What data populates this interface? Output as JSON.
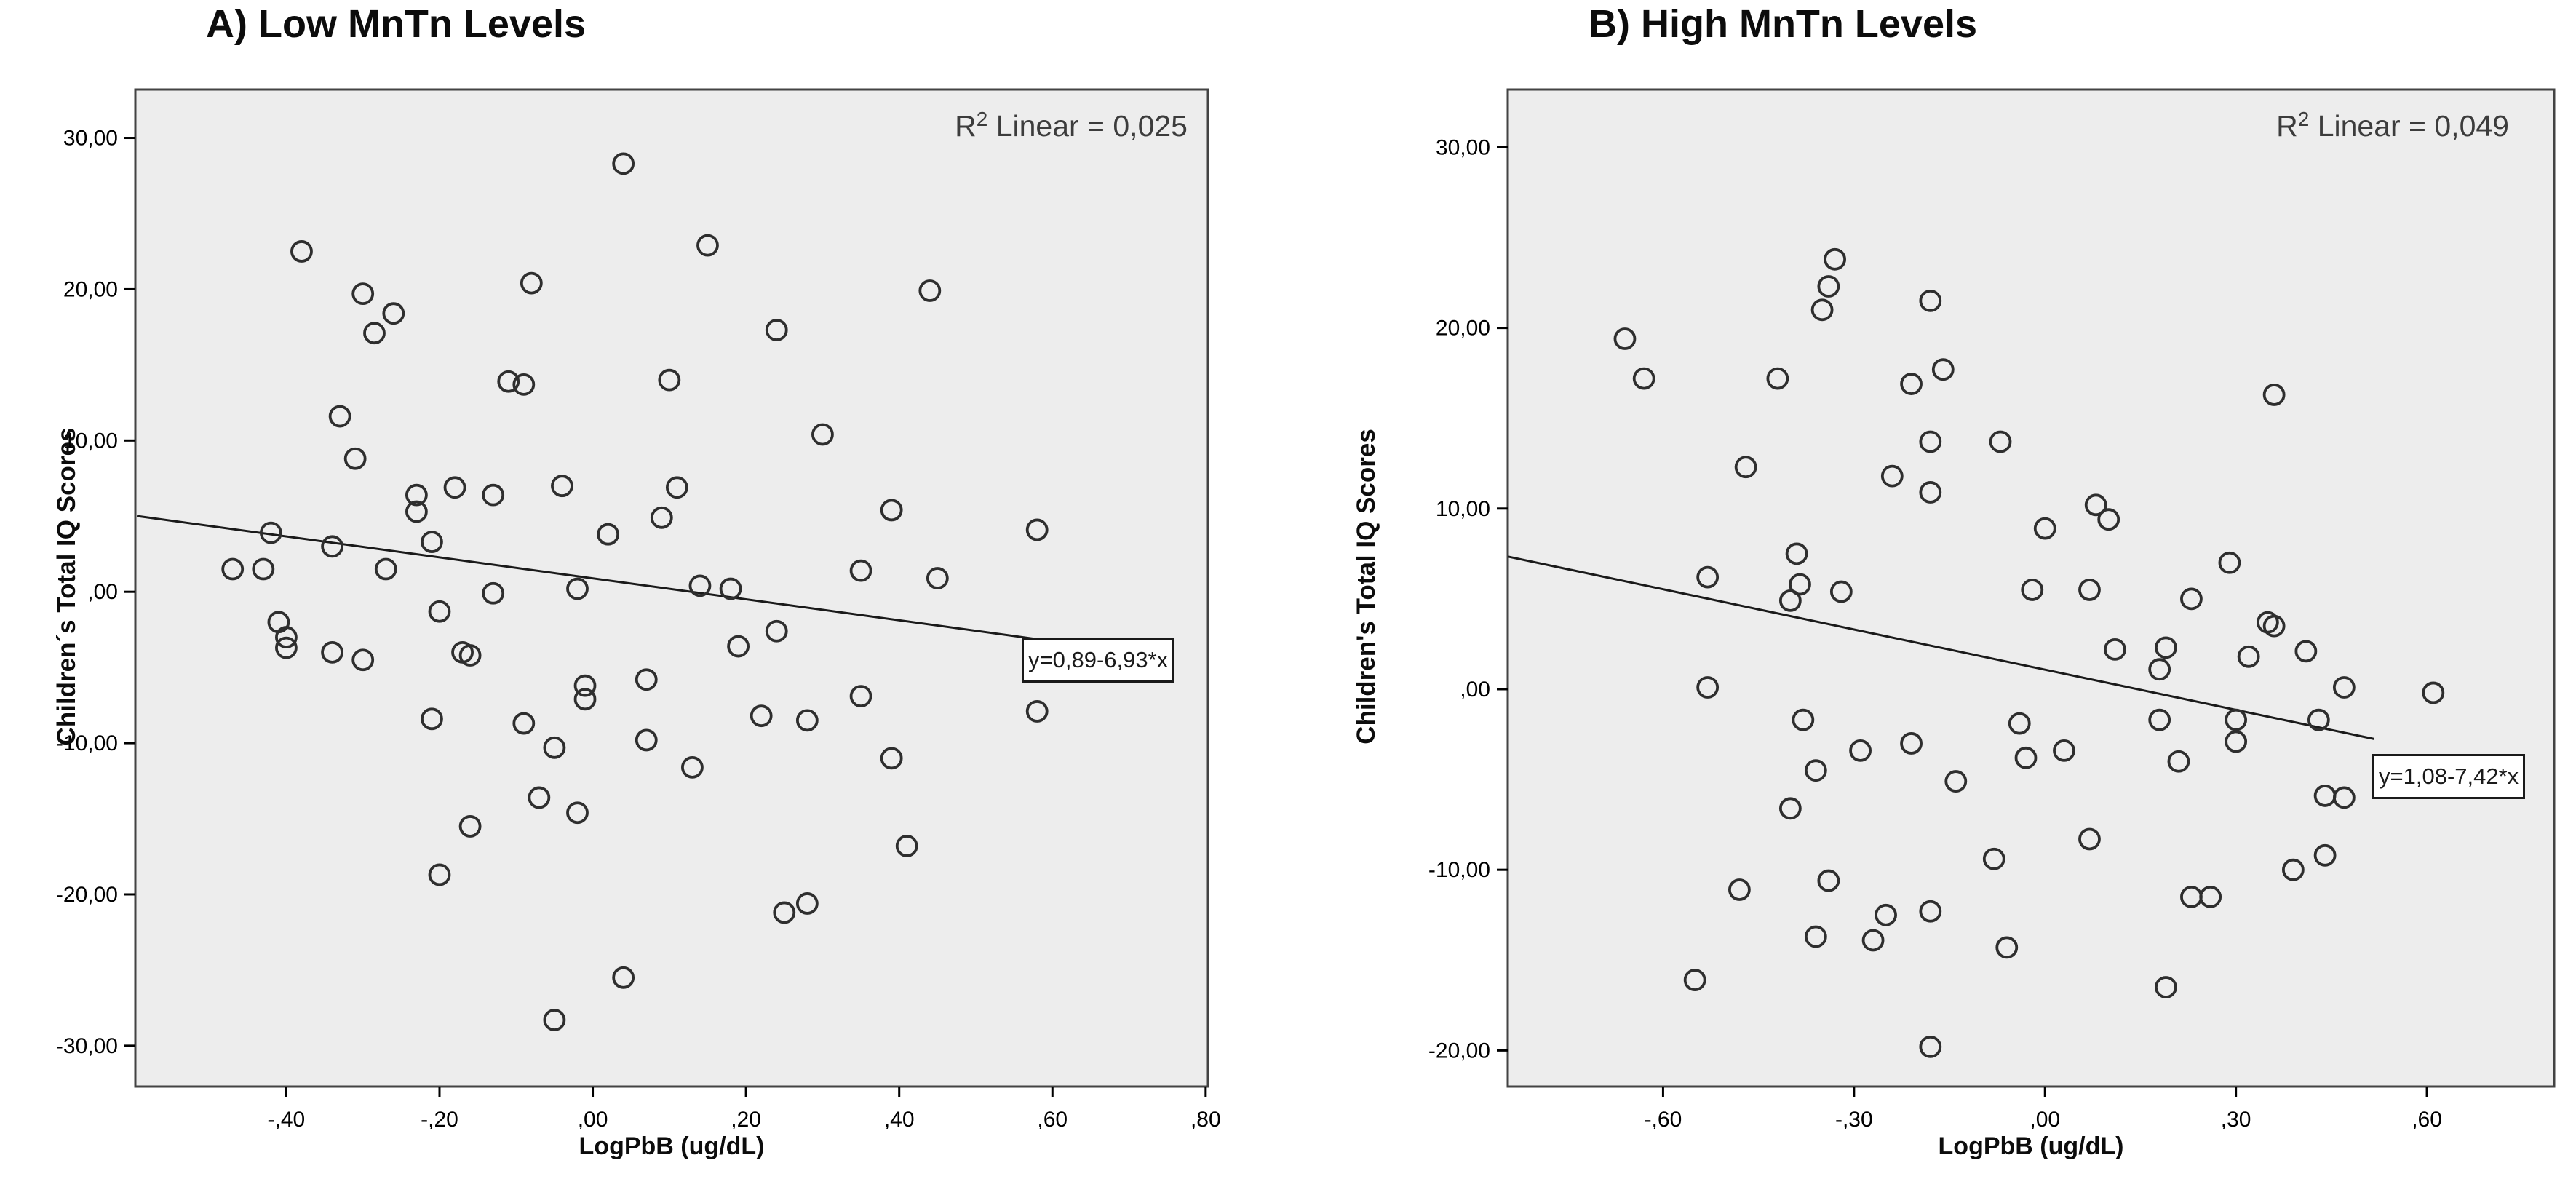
{
  "page": {
    "background": "#ffffff",
    "plot_fill": "#ededed",
    "frame_color": "#434343",
    "point_color": "#2e2e2e",
    "line_color": "#1a1a1a"
  },
  "chart_data": [
    {
      "type": "scatter",
      "title": "A) Low MnTn Levels",
      "xlabel": "LogPbB (ug/dL)",
      "ylabel": "Children´s Total IQ Scores",
      "r2": {
        "base": "R",
        "sup": "2",
        "rest": " Linear = 0,025"
      },
      "regression": {
        "label": "y=0,89-6,93*x",
        "intercept": 0.89,
        "slope": -6.93,
        "x_start": -0.595,
        "x_end": 0.585
      },
      "xlim": [
        -0.597,
        0.803
      ],
      "ylim": [
        -32.7,
        33.2
      ],
      "x_tick_values": [
        -0.4,
        -0.2,
        0.0,
        0.2,
        0.4,
        0.6,
        0.8
      ],
      "x_tick_labels": [
        "-,40",
        "-,20",
        ",00",
        ",20",
        ",40",
        ",60",
        ",80"
      ],
      "y_tick_values": [
        30,
        20,
        10,
        0,
        -10,
        -20,
        -30
      ],
      "y_tick_labels": [
        "30,00",
        "20,00",
        "10,00",
        ",00",
        "-10,00",
        "-20,00",
        "-30,00"
      ],
      "grid": false,
      "legend": "none",
      "points": [
        [
          0.04,
          28.3
        ],
        [
          -0.38,
          22.5
        ],
        [
          0.15,
          22.9
        ],
        [
          -0.08,
          20.4
        ],
        [
          -0.3,
          19.7
        ],
        [
          0.44,
          19.9
        ],
        [
          -0.26,
          18.4
        ],
        [
          -0.285,
          17.1
        ],
        [
          0.24,
          17.3
        ],
        [
          -0.11,
          13.9
        ],
        [
          -0.09,
          13.7
        ],
        [
          0.1,
          14.0
        ],
        [
          -0.33,
          11.6
        ],
        [
          0.3,
          10.4
        ],
        [
          -0.31,
          8.8
        ],
        [
          -0.18,
          6.9
        ],
        [
          -0.23,
          6.4
        ],
        [
          -0.13,
          6.4
        ],
        [
          -0.04,
          7.0
        ],
        [
          0.11,
          6.9
        ],
        [
          0.39,
          5.4
        ],
        [
          0.58,
          4.1
        ],
        [
          -0.23,
          5.3
        ],
        [
          0.09,
          4.9
        ],
        [
          -0.42,
          3.9
        ],
        [
          -0.34,
          3.0
        ],
        [
          -0.21,
          3.3
        ],
        [
          0.02,
          3.8
        ],
        [
          -0.47,
          1.5
        ],
        [
          -0.43,
          1.5
        ],
        [
          -0.27,
          1.5
        ],
        [
          0.35,
          1.4
        ],
        [
          0.45,
          0.9
        ],
        [
          0.18,
          0.2
        ],
        [
          0.14,
          0.4
        ],
        [
          -0.02,
          0.2
        ],
        [
          -0.13,
          -0.1
        ],
        [
          -0.2,
          -1.3
        ],
        [
          -0.41,
          -2.0
        ],
        [
          -0.4,
          -3.0
        ],
        [
          -0.4,
          -3.7
        ],
        [
          -0.34,
          -4.0
        ],
        [
          -0.3,
          -4.5
        ],
        [
          -0.17,
          -4.0
        ],
        [
          -0.16,
          -4.2
        ],
        [
          0.19,
          -3.6
        ],
        [
          0.24,
          -2.6
        ],
        [
          -0.01,
          -6.2
        ],
        [
          -0.01,
          -7.1
        ],
        [
          0.07,
          -5.8
        ],
        [
          0.35,
          -6.9
        ],
        [
          0.58,
          -7.9
        ],
        [
          -0.21,
          -8.4
        ],
        [
          -0.09,
          -8.7
        ],
        [
          0.22,
          -8.2
        ],
        [
          0.28,
          -8.5
        ],
        [
          -0.05,
          -10.3
        ],
        [
          0.07,
          -9.8
        ],
        [
          0.39,
          -11.0
        ],
        [
          0.13,
          -11.6
        ],
        [
          -0.07,
          -13.6
        ],
        [
          -0.02,
          -14.6
        ],
        [
          -0.16,
          -15.5
        ],
        [
          0.41,
          -16.8
        ],
        [
          -0.2,
          -18.7
        ],
        [
          0.25,
          -21.2
        ],
        [
          0.28,
          -20.6
        ],
        [
          0.04,
          -25.5
        ],
        [
          -0.05,
          -28.3
        ]
      ]
    },
    {
      "type": "scatter",
      "title": "B) High MnTn Levels",
      "xlabel": "LogPbB (ug/dL)",
      "ylabel": "Children's Total IQ Scores",
      "r2": {
        "base": "R",
        "sup": "2",
        "rest": " Linear = 0,049"
      },
      "regression": {
        "label": "y=1,08-7,42*x",
        "intercept": 1.08,
        "slope": -7.42,
        "x_start": -0.843,
        "x_end": 0.517
      },
      "xlim": [
        -0.844,
        0.8
      ],
      "ylim": [
        -22.0,
        33.2
      ],
      "x_tick_values": [
        -0.6,
        -0.3,
        0.0,
        0.3,
        0.6
      ],
      "x_tick_labels": [
        "-,60",
        "-,30",
        ",00",
        ",30",
        ",60"
      ],
      "y_tick_values": [
        30,
        20,
        10,
        0,
        -10,
        -20
      ],
      "y_tick_labels": [
        "30,00",
        "20,00",
        "10,00",
        ",00",
        "-10,00",
        "-20,00"
      ],
      "grid": false,
      "legend": "none",
      "points": [
        [
          -0.33,
          23.8
        ],
        [
          -0.34,
          22.3
        ],
        [
          -0.35,
          21.0
        ],
        [
          -0.18,
          21.5
        ],
        [
          -0.66,
          19.4
        ],
        [
          -0.63,
          17.2
        ],
        [
          -0.42,
          17.2
        ],
        [
          -0.21,
          16.9
        ],
        [
          -0.16,
          17.7
        ],
        [
          0.36,
          16.3
        ],
        [
          -0.18,
          13.7
        ],
        [
          -0.07,
          13.7
        ],
        [
          -0.47,
          12.3
        ],
        [
          -0.24,
          11.8
        ],
        [
          -0.18,
          10.9
        ],
        [
          0.08,
          10.2
        ],
        [
          0.1,
          9.4
        ],
        [
          0.0,
          8.9
        ],
        [
          -0.39,
          7.5
        ],
        [
          0.29,
          7.0
        ],
        [
          -0.53,
          6.2
        ],
        [
          -0.385,
          5.8
        ],
        [
          -0.4,
          4.9
        ],
        [
          -0.32,
          5.4
        ],
        [
          -0.02,
          5.5
        ],
        [
          0.07,
          5.5
        ],
        [
          0.23,
          5.0
        ],
        [
          0.35,
          3.7
        ],
        [
          0.36,
          3.5
        ],
        [
          0.11,
          2.2
        ],
        [
          0.19,
          2.3
        ],
        [
          0.18,
          1.1
        ],
        [
          0.32,
          1.8
        ],
        [
          0.41,
          2.1
        ],
        [
          0.47,
          0.1
        ],
        [
          0.61,
          -0.2
        ],
        [
          -0.53,
          0.1
        ],
        [
          -0.38,
          -1.7
        ],
        [
          -0.04,
          -1.9
        ],
        [
          0.18,
          -1.7
        ],
        [
          0.3,
          -1.7
        ],
        [
          0.43,
          -1.7
        ],
        [
          -0.29,
          -3.4
        ],
        [
          -0.21,
          -3.0
        ],
        [
          -0.03,
          -3.8
        ],
        [
          0.03,
          -3.4
        ],
        [
          0.3,
          -2.9
        ],
        [
          -0.36,
          -4.5
        ],
        [
          -0.14,
          -5.1
        ],
        [
          0.21,
          -4.0
        ],
        [
          -0.4,
          -6.6
        ],
        [
          0.44,
          -5.9
        ],
        [
          0.47,
          -6.0
        ],
        [
          0.07,
          -8.3
        ],
        [
          -0.08,
          -9.4
        ],
        [
          0.44,
          -9.2
        ],
        [
          0.39,
          -10.0
        ],
        [
          -0.34,
          -10.6
        ],
        [
          -0.48,
          -11.1
        ],
        [
          0.23,
          -11.5
        ],
        [
          0.26,
          -11.5
        ],
        [
          -0.25,
          -12.5
        ],
        [
          -0.18,
          -12.3
        ],
        [
          -0.36,
          -13.7
        ],
        [
          -0.27,
          -13.9
        ],
        [
          -0.06,
          -14.3
        ],
        [
          -0.55,
          -16.1
        ],
        [
          0.19,
          -16.5
        ],
        [
          -0.18,
          -19.8
        ]
      ]
    }
  ]
}
